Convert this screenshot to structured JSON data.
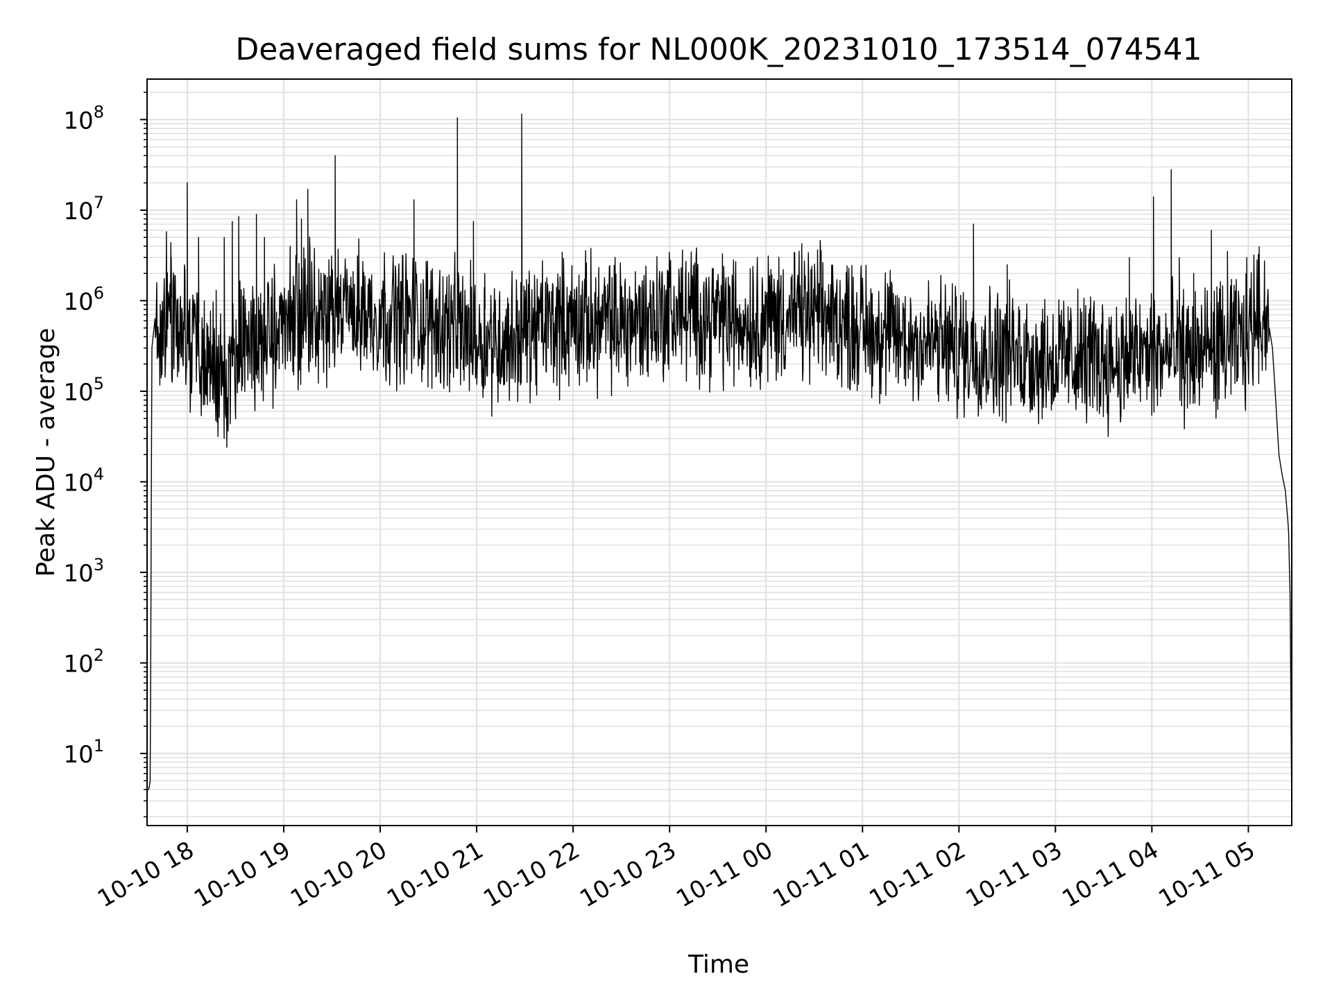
{
  "chart_data": {
    "type": "line",
    "title": "Deaveraged field sums for NL000K_20231010_173514_074541",
    "xlabel": "Time",
    "ylabel": "Peak ADU - average",
    "yscale": "log",
    "ylim": [
      1.6,
      280000000
    ],
    "xlim": [
      "2023-10-10 17:35",
      "2023-10-11 05:27"
    ],
    "grid": true,
    "line_color": "#000000",
    "grid_color": "#e0e0e0",
    "x_ticks": [
      {
        "time": "2023-10-10 18:00",
        "label": "10-10 18"
      },
      {
        "time": "2023-10-10 19:00",
        "label": "10-10 19"
      },
      {
        "time": "2023-10-10 20:00",
        "label": "10-10 20"
      },
      {
        "time": "2023-10-10 21:00",
        "label": "10-10 21"
      },
      {
        "time": "2023-10-10 22:00",
        "label": "10-10 22"
      },
      {
        "time": "2023-10-10 23:00",
        "label": "10-10 23"
      },
      {
        "time": "2023-10-11 00:00",
        "label": "10-11 00"
      },
      {
        "time": "2023-10-11 01:00",
        "label": "10-11 01"
      },
      {
        "time": "2023-10-11 02:00",
        "label": "10-11 02"
      },
      {
        "time": "2023-10-11 03:00",
        "label": "10-11 03"
      },
      {
        "time": "2023-10-11 04:00",
        "label": "10-11 04"
      },
      {
        "time": "2023-10-11 05:00",
        "label": "10-11 05"
      }
    ],
    "y_ticks": [
      {
        "value": 10,
        "base": "10",
        "exp": "1"
      },
      {
        "value": 100,
        "base": "10",
        "exp": "2"
      },
      {
        "value": 1000,
        "base": "10",
        "exp": "3"
      },
      {
        "value": 10000,
        "base": "10",
        "exp": "4"
      },
      {
        "value": 100000,
        "base": "10",
        "exp": "5"
      },
      {
        "value": 1000000,
        "base": "10",
        "exp": "6"
      },
      {
        "value": 10000000,
        "base": "10",
        "exp": "7"
      },
      {
        "value": 100000000,
        "base": "10",
        "exp": "8"
      }
    ],
    "series": [
      {
        "x": [
          "2023-10-10 17:35",
          "2023-10-10 17:36",
          "2023-10-10 17:37",
          "2023-10-10 17:38",
          "2023-10-10 17:40",
          "2023-10-10 17:43",
          "2023-10-10 17:45",
          "2023-10-10 17:47",
          "2023-10-10 17:48",
          "2023-10-10 17:50",
          "2023-10-10 17:55",
          "2023-10-10 18:00",
          "2023-10-10 18:10",
          "2023-10-10 18:15",
          "2023-10-10 18:25",
          "2023-10-10 18:30",
          "2023-10-10 18:45",
          "2023-10-10 19:00",
          "2023-10-10 19:15",
          "2023-10-10 19:30",
          "2023-10-10 19:45",
          "2023-10-10 20:00",
          "2023-10-10 20:20",
          "2023-10-10 20:40",
          "2023-10-10 21:00",
          "2023-10-10 21:15",
          "2023-10-10 21:30",
          "2023-10-10 21:45",
          "2023-10-10 22:00",
          "2023-10-10 22:20",
          "2023-10-10 22:40",
          "2023-10-10 23:00",
          "2023-10-10 23:20",
          "2023-10-10 23:40",
          "2023-10-11 00:00",
          "2023-10-11 00:20",
          "2023-10-11 00:40",
          "2023-10-11 01:00",
          "2023-10-11 01:20",
          "2023-10-11 01:40",
          "2023-10-11 02:00",
          "2023-10-11 02:20",
          "2023-10-11 02:40",
          "2023-10-11 03:00",
          "2023-10-11 03:20",
          "2023-10-11 03:40",
          "2023-10-11 04:00",
          "2023-10-11 04:20",
          "2023-10-11 04:40",
          "2023-10-11 05:00",
          "2023-10-11 05:05",
          "2023-10-11 05:10",
          "2023-10-11 05:13",
          "2023-10-11 05:15",
          "2023-10-11 05:17",
          "2023-10-11 05:19",
          "2023-10-11 05:21",
          "2023-10-11 05:23",
          "2023-10-11 05:25",
          "2023-10-11 05:26",
          "2023-10-11 05:27"
        ],
        "values": [
          4,
          4,
          5,
          300000,
          650000,
          550000,
          400000,
          1000000,
          800000,
          700000,
          600000,
          400000,
          300000,
          200000,
          150000,
          250000,
          350000,
          500000,
          700000,
          800000,
          750000,
          700000,
          650000,
          550000,
          400000,
          350000,
          450000,
          550000,
          600000,
          550000,
          600000,
          750000,
          700000,
          600000,
          650000,
          700000,
          650000,
          500000,
          400000,
          350000,
          300000,
          280000,
          250000,
          220000,
          230000,
          220000,
          250000,
          250000,
          300000,
          350000,
          900000,
          700000,
          500000,
          300000,
          80000,
          20000,
          12000,
          8000,
          3000,
          500,
          2
        ],
        "noise": 0.55,
        "spikes": [
          {
            "x": "2023-10-10 17:50",
            "value": 3000000
          },
          {
            "x": "2023-10-10 18:00",
            "value": 20000000
          },
          {
            "x": "2023-10-10 18:07",
            "value": 5000000
          },
          {
            "x": "2023-10-10 18:18",
            "value": 1300000
          },
          {
            "x": "2023-10-10 18:23",
            "value": 5000000
          },
          {
            "x": "2023-10-10 18:28",
            "value": 7500000
          },
          {
            "x": "2023-10-10 18:32",
            "value": 8500000
          },
          {
            "x": "2023-10-10 18:43",
            "value": 9000000
          },
          {
            "x": "2023-10-10 18:48",
            "value": 5000000
          },
          {
            "x": "2023-10-10 19:08",
            "value": 13000000
          },
          {
            "x": "2023-10-10 19:11",
            "value": 8000000
          },
          {
            "x": "2023-10-10 19:15",
            "value": 17000000
          },
          {
            "x": "2023-10-10 19:25",
            "value": 2000000
          },
          {
            "x": "2023-10-10 19:32",
            "value": 40000000
          },
          {
            "x": "2023-10-10 20:21",
            "value": 13000000
          },
          {
            "x": "2023-10-10 20:48",
            "value": 105000000
          },
          {
            "x": "2023-10-10 20:58",
            "value": 7500000
          },
          {
            "x": "2023-10-10 21:05",
            "value": 2000000
          },
          {
            "x": "2023-10-10 21:28",
            "value": 115000000
          },
          {
            "x": "2023-10-11 02:09",
            "value": 7000000
          },
          {
            "x": "2023-10-11 02:30",
            "value": 2500000
          },
          {
            "x": "2023-10-11 03:46",
            "value": 3000000
          },
          {
            "x": "2023-10-11 04:01",
            "value": 14000000
          },
          {
            "x": "2023-10-11 04:12",
            "value": 28000000
          },
          {
            "x": "2023-10-11 04:17",
            "value": 3000000
          },
          {
            "x": "2023-10-11 04:26",
            "value": 2000000
          },
          {
            "x": "2023-10-11 04:37",
            "value": 6000000
          },
          {
            "x": "2023-10-11 04:47",
            "value": 3500000
          },
          {
            "x": "2023-10-11 04:59",
            "value": 3000000
          }
        ]
      }
    ]
  }
}
